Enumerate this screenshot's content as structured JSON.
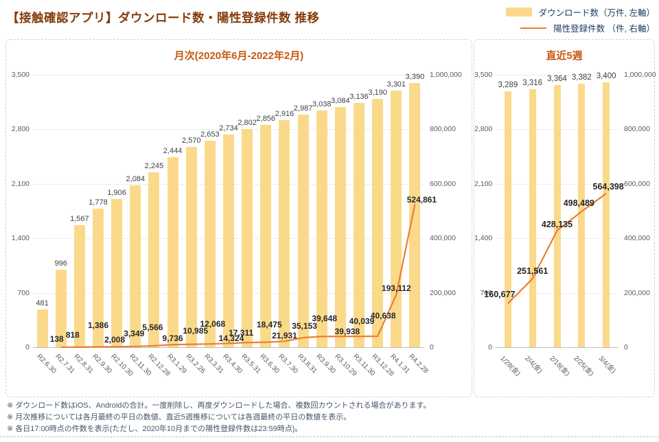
{
  "title": "【接触確認アプリ】ダウンロード数・陽性登録件数 推移",
  "legend": {
    "downloads": "ダウンロード数（万件, 左軸）",
    "positives": "陽性登録件数 （件, 右軸）"
  },
  "colors": {
    "bar": "#FADA8A",
    "line": "#ED7D31",
    "page_title": "#843C0C",
    "chart_title": "#C55A11"
  },
  "notes": [
    "※ ダウンロード数はiOS、Androidの合計。一度削除し、再度ダウンロードした場合、複数回カウントされる場合があります。",
    "※ 月次推移については各月最終の平日の数値、直近5週推移については各週最終の平日の数値を表示。",
    "※ 各日17:00時点の件数を表示(ただし、2020年10月までの陽性登録件数は23:59時点)。"
  ],
  "chart_data": [
    {
      "type": "bar",
      "title": "月次(2020年6月-2022年2月)",
      "categories": [
        "R2.6.30",
        "R2.7.31",
        "R2.8.31",
        "R2.9.30",
        "R2.10.30",
        "R2.11.30",
        "R2.12.28",
        "R3.1.29",
        "R3.2.26",
        "R3.3.31",
        "R3.4.30",
        "R3.5.31",
        "R3.6.30",
        "R3.7.30",
        "R3.8.31",
        "R3.9.30",
        "R3.10.29",
        "R3.11.30",
        "R3.12.28",
        "R4.1.31",
        "R4.2.28"
      ],
      "series": [
        {
          "name": "ダウンロード数（万件, 左軸）",
          "type": "bar",
          "axis": "left",
          "values": [
            481,
            996,
            1567,
            1778,
            1906,
            2084,
            2245,
            2444,
            2570,
            2653,
            2734,
            2802,
            2856,
            2916,
            2987,
            3038,
            3084,
            3136,
            3190,
            3301,
            3390
          ]
        },
        {
          "name": "陽性登録件数（件, 右軸）",
          "type": "line",
          "axis": "right",
          "values": [
            null,
            138,
            818,
            1386,
            2008,
            3349,
            5566,
            9736,
            10985,
            12068,
            14324,
            17311,
            18475,
            21931,
            35153,
            39648,
            39938,
            40039,
            40638,
            193112,
            524861
          ]
        }
      ],
      "left_axis": {
        "max": 3500,
        "ticks": [
          0,
          700,
          1400,
          2100,
          2800,
          3500
        ]
      },
      "right_axis": {
        "max": 1000000,
        "ticks": [
          0,
          200000,
          400000,
          600000,
          800000,
          1000000
        ]
      },
      "grid": true,
      "legend_position": "top-right"
    },
    {
      "type": "bar",
      "title": "直近5週",
      "categories": [
        "1/28(金)",
        "2/4(金)",
        "2/18(金)",
        "2/25(金)",
        "3/4(金)"
      ],
      "series": [
        {
          "name": "ダウンロード数（万件, 左軸）",
          "type": "bar",
          "axis": "left",
          "values": [
            3289,
            3316,
            3364,
            3382,
            3400
          ]
        },
        {
          "name": "陽性登録件数（件, 右軸）",
          "type": "line",
          "axis": "right",
          "values": [
            160677,
            251561,
            428135,
            498489,
            564398
          ]
        }
      ],
      "left_axis": {
        "max": 3500,
        "ticks": [
          0,
          700,
          1400,
          2100,
          2800,
          3500
        ]
      },
      "right_axis": {
        "max": 1000000,
        "ticks": [
          0,
          200000,
          400000,
          600000,
          800000,
          1000000
        ]
      },
      "grid": true
    }
  ]
}
